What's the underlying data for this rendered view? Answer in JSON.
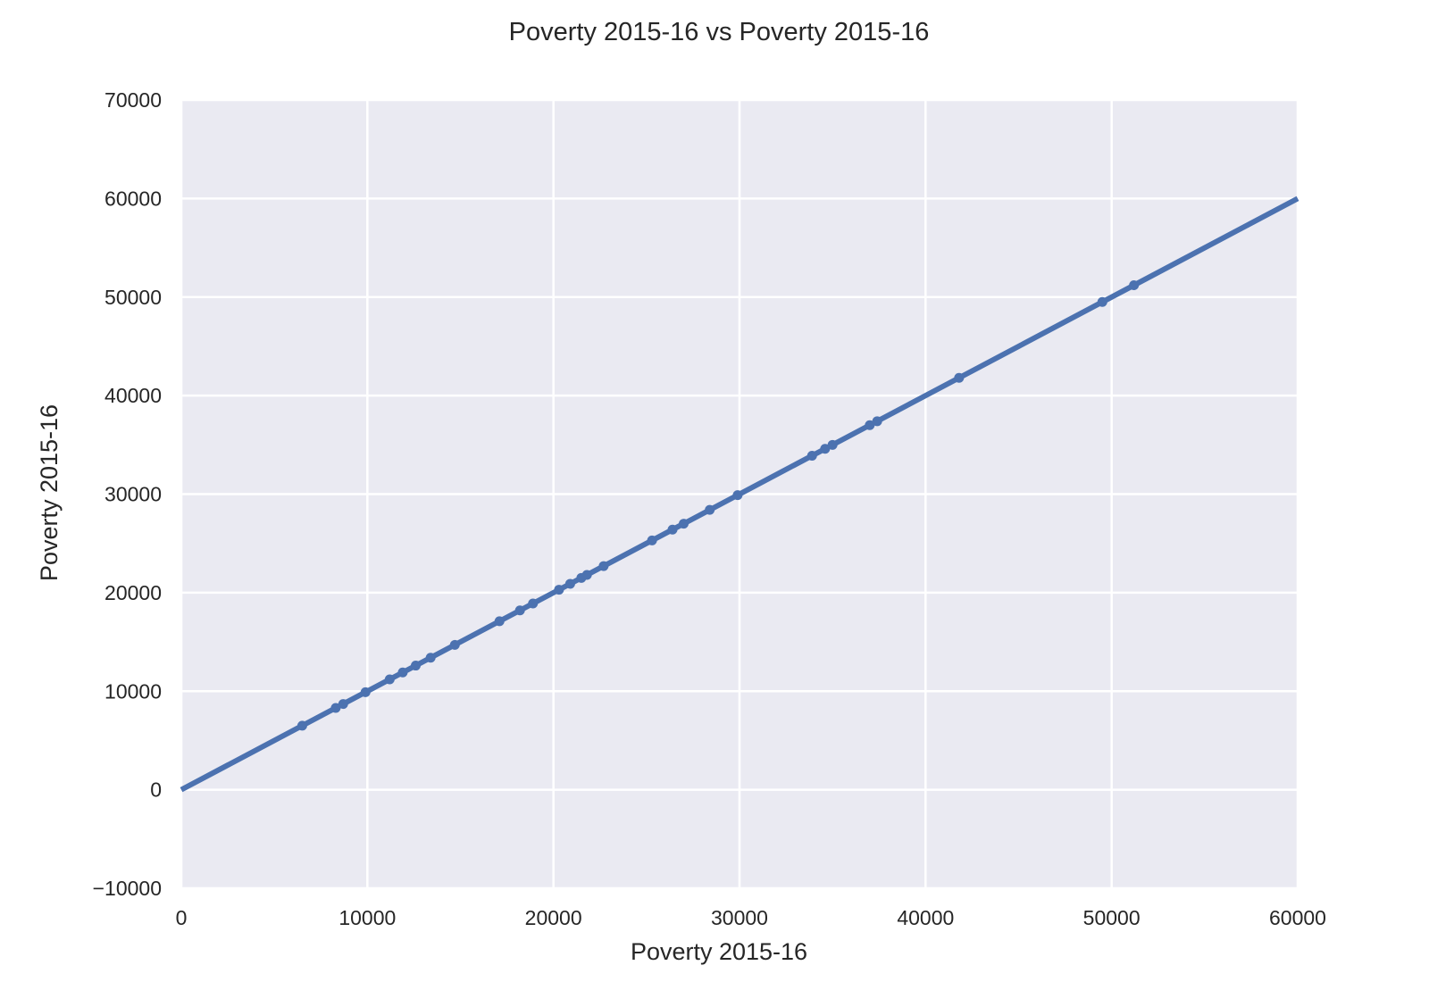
{
  "chart_data": {
    "type": "scatter",
    "title": "Poverty 2015-16 vs Poverty 2015-16",
    "xlabel": "Poverty 2015-16",
    "ylabel": "Poverty 2015-16",
    "xlim": [
      0,
      60000
    ],
    "ylim": [
      -10000,
      70000
    ],
    "x_ticks": [
      "0",
      "10000",
      "20000",
      "30000",
      "40000",
      "50000",
      "60000"
    ],
    "x_tick_values": [
      0,
      10000,
      20000,
      30000,
      40000,
      50000,
      60000
    ],
    "y_ticks": [
      "−10000",
      "0",
      "10000",
      "20000",
      "30000",
      "40000",
      "50000",
      "60000",
      "70000"
    ],
    "y_tick_values": [
      -10000,
      0,
      10000,
      20000,
      30000,
      40000,
      50000,
      60000,
      70000
    ],
    "grid": true,
    "background_color": "#EAEAF2",
    "series_color": "#4C72B0",
    "regression_line": {
      "x": [
        0,
        60000
      ],
      "y": [
        0,
        60000
      ]
    },
    "points": [
      {
        "x": 6500,
        "y": 6500
      },
      {
        "x": 8300,
        "y": 8300
      },
      {
        "x": 8700,
        "y": 8700
      },
      {
        "x": 9900,
        "y": 9900
      },
      {
        "x": 11200,
        "y": 11200
      },
      {
        "x": 11900,
        "y": 11900
      },
      {
        "x": 12600,
        "y": 12600
      },
      {
        "x": 13400,
        "y": 13400
      },
      {
        "x": 14700,
        "y": 14700
      },
      {
        "x": 17100,
        "y": 17100
      },
      {
        "x": 18200,
        "y": 18200
      },
      {
        "x": 18900,
        "y": 18900
      },
      {
        "x": 20300,
        "y": 20300
      },
      {
        "x": 20900,
        "y": 20900
      },
      {
        "x": 21500,
        "y": 21500
      },
      {
        "x": 21800,
        "y": 21800
      },
      {
        "x": 22700,
        "y": 22700
      },
      {
        "x": 25300,
        "y": 25300
      },
      {
        "x": 26400,
        "y": 26400
      },
      {
        "x": 27000,
        "y": 27000
      },
      {
        "x": 28400,
        "y": 28400
      },
      {
        "x": 29900,
        "y": 29900
      },
      {
        "x": 33900,
        "y": 33900
      },
      {
        "x": 34600,
        "y": 34600
      },
      {
        "x": 35000,
        "y": 35000
      },
      {
        "x": 37000,
        "y": 37000
      },
      {
        "x": 37400,
        "y": 37400
      },
      {
        "x": 41800,
        "y": 41800
      },
      {
        "x": 49500,
        "y": 49500
      },
      {
        "x": 51200,
        "y": 51200
      }
    ]
  }
}
